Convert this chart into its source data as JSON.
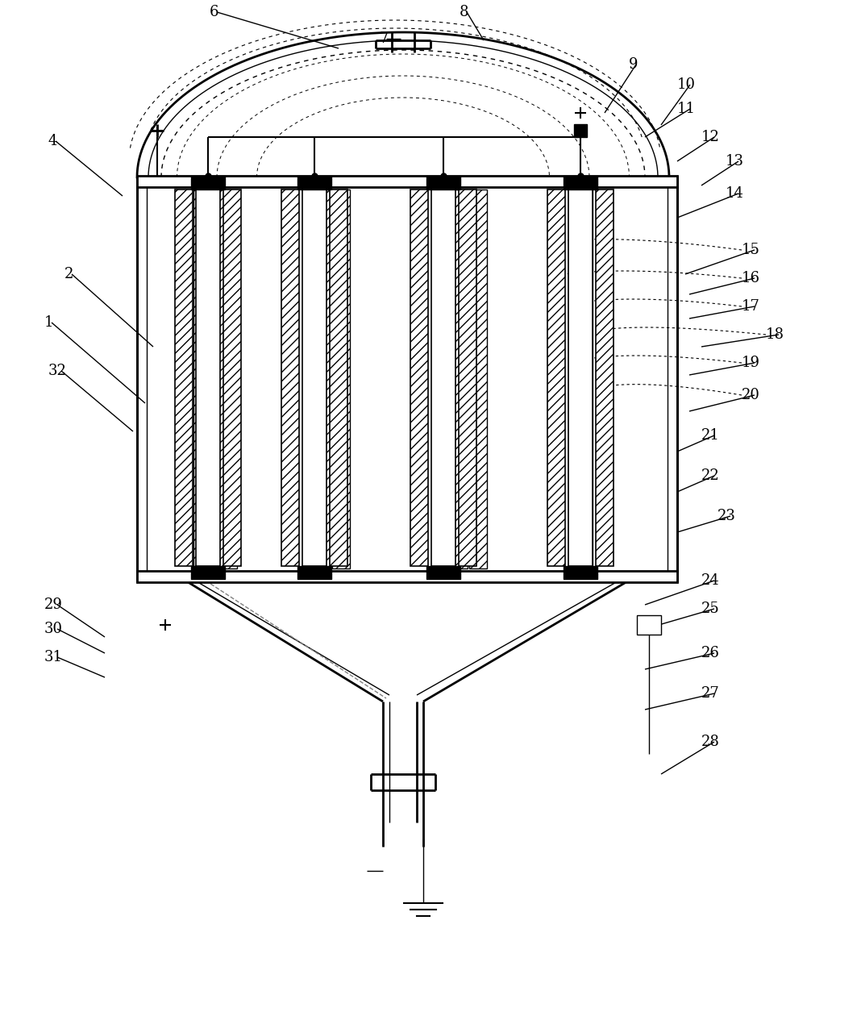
{
  "bg_color": "#ffffff",
  "line_color": "#000000",
  "hatch_color": "#000000",
  "title": "",
  "figsize": [
    10.68,
    12.6
  ],
  "dpi": 100
}
